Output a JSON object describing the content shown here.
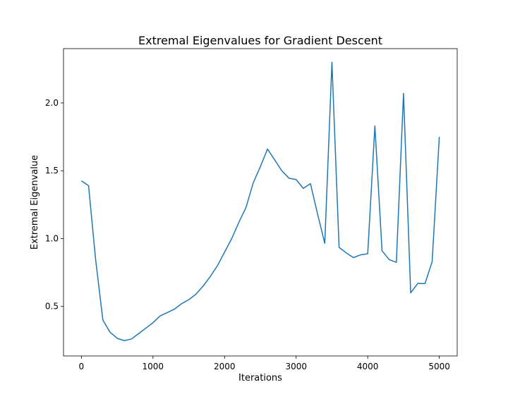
{
  "chart_data": {
    "type": "line",
    "title": "Extremal Eigenvalues for Gradient Descent",
    "xlabel": "Iterations",
    "ylabel": "Extremal Eigenvalue",
    "xlim": [
      -250,
      5250
    ],
    "ylim": [
      0.135,
      2.4
    ],
    "xticks": [
      0,
      1000,
      2000,
      3000,
      4000,
      5000
    ],
    "yticks": [
      0.5,
      1.0,
      1.5,
      2.0
    ],
    "xtick_labels": [
      "0",
      "1000",
      "2000",
      "3000",
      "4000",
      "5000"
    ],
    "ytick_labels": [
      "0.5",
      "1.0",
      "1.5",
      "2.0"
    ],
    "grid": false,
    "line_color": "#1f77b4",
    "series": [
      {
        "x": [
          0,
          100,
          200,
          300,
          400,
          500,
          600,
          700,
          800,
          900,
          1000,
          1100,
          1200,
          1300,
          1400,
          1500,
          1600,
          1700,
          1800,
          1900,
          2000,
          2100,
          2200,
          2300,
          2400,
          2500,
          2600,
          2700,
          2800,
          2900,
          3000,
          3100,
          3200,
          3300,
          3400,
          3500,
          3600,
          3700,
          3800,
          3900,
          4000,
          4100,
          4200,
          4300,
          4400,
          4500,
          4600,
          4700,
          4800,
          4900,
          5000
        ],
        "values": [
          1.425,
          1.39,
          0.84,
          0.4,
          0.31,
          0.265,
          0.248,
          0.26,
          0.3,
          0.34,
          0.38,
          0.43,
          0.455,
          0.48,
          0.52,
          0.55,
          0.59,
          0.65,
          0.72,
          0.8,
          0.9,
          1.0,
          1.12,
          1.23,
          1.41,
          1.53,
          1.66,
          1.58,
          1.5,
          1.445,
          1.435,
          1.37,
          1.405,
          1.18,
          0.965,
          2.3,
          0.935,
          0.895,
          0.86,
          0.88,
          0.888,
          1.83,
          0.91,
          0.845,
          0.825,
          2.07,
          0.6,
          0.67,
          0.668,
          0.83,
          1.75
        ]
      }
    ]
  }
}
